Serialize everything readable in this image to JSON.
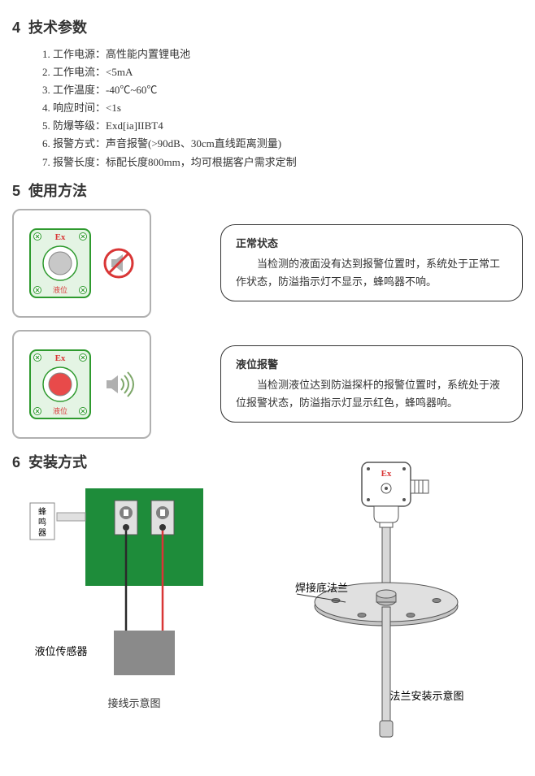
{
  "sections": {
    "tech": {
      "number": "4",
      "title": "技术参数"
    },
    "usage": {
      "number": "5",
      "title": "使用方法"
    },
    "install": {
      "number": "6",
      "title": "安装方式"
    }
  },
  "specs": {
    "items": [
      {
        "label": "工作电源",
        "val": "高性能内置锂电池"
      },
      {
        "label": "工作电流",
        "val": "<5mA"
      },
      {
        "label": "工作温度",
        "val": "-40℃~60℃"
      },
      {
        "label": "响应时间",
        "val": "<1s"
      },
      {
        "label": "防爆等级",
        "val": "Exd[ia]IIBT4"
      },
      {
        "label": "报警方式",
        "val": "声音报警(>90dB、30cm直线距离测量)"
      },
      {
        "label": "报警长度",
        "val": "标配长度800mm，均可根据客户需求定制"
      }
    ]
  },
  "device": {
    "ex_label": "Ex",
    "liquid_label": "液位",
    "colors": {
      "plate_bg": "#e4f4e4",
      "plate_stroke": "#2e9a2e",
      "ex_text": "#d93636",
      "liquid_text": "#d93636",
      "btn_gray": "#c8c8c8",
      "btn_red": "#e84a4a",
      "muted_icon_fill": "#b0b0b0",
      "muted_circle": "#d93636",
      "sound_wave": "#7fa86b"
    }
  },
  "states": {
    "normal": {
      "title": "正常状态",
      "text": "当检测的液面没有达到报警位置时，系统处于正常工作状态，防溢指示灯不显示，蜂鸣器不响。"
    },
    "alarm": {
      "title": "液位报警",
      "text": "当检测液位达到防溢探杆的报警位置时，系统处于液位报警状态，防溢指示灯显示红色，蜂鸣器响。"
    }
  },
  "install": {
    "wiring": {
      "buzzer_label": "蜂\n鸣\n器",
      "sensor_label": "液位传感器",
      "caption": "接线示意图",
      "colors": {
        "pcb": "#1e8c3a",
        "terminal_outer": "#e0e0e0",
        "terminal_inner": "#808080",
        "wire_black": "#2a2a2a",
        "wire_red": "#d93636",
        "sensor_box": "#8a8a8a",
        "buzzer_box": "#ffffff",
        "cable": "#e0e0e0"
      }
    },
    "flange": {
      "flange_label": "焊接底法兰",
      "caption": "法兰安装示意图",
      "ex_label": "Ex",
      "colors": {
        "head_fill": "#ffffff",
        "stroke": "#555555",
        "flange_fill": "#c5c5c5",
        "rod_fill": "#d8d8d8",
        "ex_text": "#d93636"
      }
    }
  }
}
